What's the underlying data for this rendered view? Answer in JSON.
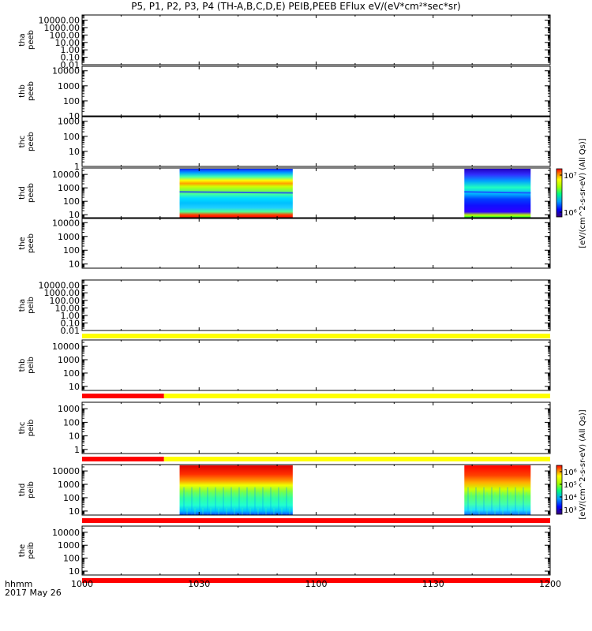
{
  "title": "P5, P1, P2, P3, P4 (TH-A,B,C,D,E) PEIB,PEEB EFlux eV/(eV*cm²*sec*sr)",
  "chart_data": {
    "type": "heatmap",
    "x_axis": {
      "range": [
        "10:00",
        "12:00"
      ],
      "ticks": [
        "1000",
        "1030",
        "1100",
        "1130",
        "1200"
      ],
      "label": "hhmm",
      "date": "2017 May 26"
    },
    "panels": [
      {
        "name": [
          "tha",
          "peeb"
        ],
        "yticks": [
          "10000.00",
          "1000.00",
          "100.00",
          "10.00",
          "1.00",
          "0.10",
          "0.01"
        ],
        "ymin": 0.01,
        "ymax": 50000,
        "blocks": [],
        "bar": null
      },
      {
        "name": [
          "thb",
          "peeb"
        ],
        "yticks": [
          "10000",
          "1000",
          "100",
          "10"
        ],
        "ymin": 10,
        "ymax": 20000,
        "blocks": [],
        "bar": null
      },
      {
        "name": [
          "thc",
          "peeb"
        ],
        "yticks": [
          "1000",
          "100",
          "10",
          "1"
        ],
        "ymin": 1,
        "ymax": 2000,
        "blocks": [],
        "bar": null
      },
      {
        "name": [
          "thd",
          "peeb"
        ],
        "yticks": [
          "10000",
          "1000",
          "100",
          "10"
        ],
        "ymin": 6,
        "ymax": 30000,
        "type": "electron",
        "blocks": [
          {
            "start": "10:25",
            "end": "10:54"
          },
          {
            "start": "11:38",
            "end": "11:55"
          }
        ],
        "bar": null
      },
      {
        "name": [
          "the",
          "peeb"
        ],
        "yticks": [
          "10000",
          "1000",
          "100",
          "10"
        ],
        "ymin": 5,
        "ymax": 20000,
        "blocks": [],
        "bar": null
      },
      {
        "name": [
          "tha",
          "peib"
        ],
        "yticks": [
          "10000.00",
          "1000.00",
          "100.00",
          "10.00",
          "1.00",
          "0.10",
          "0.01"
        ],
        "ymin": 0.01,
        "ymax": 50000,
        "blocks": [],
        "bar": [
          {
            "start": "10:00",
            "end": "12:00",
            "color": "#ffff00"
          }
        ]
      },
      {
        "name": [
          "thb",
          "peib"
        ],
        "yticks": [
          "10000",
          "1000",
          "100",
          "10"
        ],
        "ymin": 5,
        "ymax": 30000,
        "blocks": [],
        "bar": [
          {
            "start": "10:00",
            "end": "10:21",
            "color": "#ff0000"
          },
          {
            "start": "10:21",
            "end": "12:00",
            "color": "#ffff00"
          }
        ]
      },
      {
        "name": [
          "thc",
          "peib"
        ],
        "yticks": [
          "1000",
          "100",
          "10",
          "1"
        ],
        "ymin": 0.5,
        "ymax": 3000,
        "blocks": [],
        "bar": [
          {
            "start": "10:00",
            "end": "10:21",
            "color": "#ff0000"
          },
          {
            "start": "10:21",
            "end": "12:00",
            "color": "#ffff00"
          }
        ]
      },
      {
        "name": [
          "thd",
          "peib"
        ],
        "yticks": [
          "10000",
          "1000",
          "100",
          "10"
        ],
        "ymin": 5,
        "ymax": 30000,
        "type": "ion",
        "blocks": [
          {
            "start": "10:25",
            "end": "10:54"
          },
          {
            "start": "11:38",
            "end": "11:55"
          }
        ],
        "bar": [
          {
            "start": "10:00",
            "end": "12:00",
            "color": "#ff0000"
          }
        ]
      },
      {
        "name": [
          "the",
          "peib"
        ],
        "yticks": [
          "10000",
          "1000",
          "100",
          "10"
        ],
        "ymin": 5,
        "ymax": 30000,
        "blocks": [],
        "bar": [
          {
            "start": "10:00",
            "end": "12:00",
            "color": "#ff0000"
          }
        ]
      }
    ],
    "colorbars": [
      {
        "panel": 3,
        "ticks": [
          "10⁷",
          "10⁶"
        ],
        "label": "[eV/(cm^2-s-sr-eV) (All Qs)]"
      },
      {
        "panel": 8,
        "ticks": [
          "10⁶",
          "10⁵",
          "10⁴",
          "10³"
        ],
        "label": "[eV/(cm^2-s-sr-eV) (All Qs)]"
      }
    ]
  }
}
